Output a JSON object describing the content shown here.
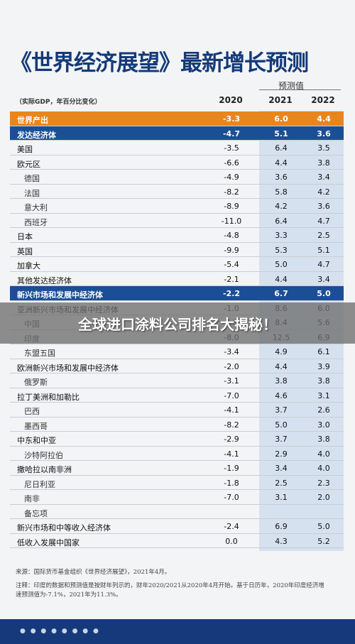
{
  "title": "《世界经济展望》最新增长预测",
  "predicted_label": "预测值",
  "subtitle": "（实际GDP，年百分比变化）",
  "columns": [
    "2020",
    "2021",
    "2022"
  ],
  "rows": [
    {
      "label": "世界产出",
      "v2020": "-3.3",
      "v2021": "6.0",
      "v2022": "4.4",
      "style": "orange"
    },
    {
      "label": "发达经济体",
      "v2020": "-4.7",
      "v2021": "5.1",
      "v2022": "3.6",
      "style": "blue"
    },
    {
      "label": "美国",
      "v2020": "-3.5",
      "v2021": "6.4",
      "v2022": "3.5",
      "style": "normal"
    },
    {
      "label": "欧元区",
      "v2020": "-6.6",
      "v2021": "4.4",
      "v2022": "3.8",
      "style": "normal"
    },
    {
      "label": "德国",
      "v2020": "-4.9",
      "v2021": "3.6",
      "v2022": "3.4",
      "style": "indent"
    },
    {
      "label": "法国",
      "v2020": "-8.2",
      "v2021": "5.8",
      "v2022": "4.2",
      "style": "indent"
    },
    {
      "label": "意大利",
      "v2020": "-8.9",
      "v2021": "4.2",
      "v2022": "3.6",
      "style": "indent"
    },
    {
      "label": "西班牙",
      "v2020": "-11.0",
      "v2021": "6.4",
      "v2022": "4.7",
      "style": "indent"
    },
    {
      "label": "日本",
      "v2020": "-4.8",
      "v2021": "3.3",
      "v2022": "2.5",
      "style": "normal"
    },
    {
      "label": "英国",
      "v2020": "-9.9",
      "v2021": "5.3",
      "v2022": "5.1",
      "style": "normal"
    },
    {
      "label": "加拿大",
      "v2020": "-5.4",
      "v2021": "5.0",
      "v2022": "4.7",
      "style": "normal"
    },
    {
      "label": "其他发达经济体",
      "v2020": "-2.1",
      "v2021": "4.4",
      "v2022": "3.4",
      "style": "normal"
    },
    {
      "label": "新兴市场和发展中经济体",
      "v2020": "-2.2",
      "v2021": "6.7",
      "v2022": "5.0",
      "style": "blue"
    },
    {
      "label": "亚洲新兴市场和发展中经济体",
      "v2020": "-1.0",
      "v2021": "8.6",
      "v2022": "6.0",
      "style": "normal"
    },
    {
      "label": "中国",
      "v2020": "2.3",
      "v2021": "8.4",
      "v2022": "5.6",
      "style": "indent"
    },
    {
      "label": "印度",
      "v2020": "-8.0",
      "v2021": "12.5",
      "v2022": "6.9",
      "style": "indent"
    },
    {
      "label": "东盟五国",
      "v2020": "-3.4",
      "v2021": "4.9",
      "v2022": "6.1",
      "style": "indent"
    },
    {
      "label": "欧洲新兴市场和发展中经济体",
      "v2020": "-2.0",
      "v2021": "4.4",
      "v2022": "3.9",
      "style": "normal"
    },
    {
      "label": "俄罗斯",
      "v2020": "-3.1",
      "v2021": "3.8",
      "v2022": "3.8",
      "style": "indent"
    },
    {
      "label": "拉丁美洲和加勒比",
      "v2020": "-7.0",
      "v2021": "4.6",
      "v2022": "3.1",
      "style": "normal"
    },
    {
      "label": "巴西",
      "v2020": "-4.1",
      "v2021": "3.7",
      "v2022": "2.6",
      "style": "indent"
    },
    {
      "label": "墨西哥",
      "v2020": "-8.2",
      "v2021": "5.0",
      "v2022": "3.0",
      "style": "indent"
    },
    {
      "label": "中东和中亚",
      "v2020": "-2.9",
      "v2021": "3.7",
      "v2022": "3.8",
      "style": "normal"
    },
    {
      "label": "沙特阿拉伯",
      "v2020": "-4.1",
      "v2021": "2.9",
      "v2022": "4.0",
      "style": "indent"
    },
    {
      "label": "撒哈拉以南非洲",
      "v2020": "-1.9",
      "v2021": "3.4",
      "v2022": "4.0",
      "style": "normal"
    },
    {
      "label": "尼日利亚",
      "v2020": "-1.8",
      "v2021": "2.5",
      "v2022": "2.3",
      "style": "indent"
    },
    {
      "label": "南非",
      "v2020": "-7.0",
      "v2021": "3.1",
      "v2022": "2.0",
      "style": "indent"
    },
    {
      "label": "备忘项",
      "v2020": "",
      "v2021": "",
      "v2022": "",
      "style": "indent"
    },
    {
      "label": "新兴市场和中等收入经济体",
      "v2020": "-2.4",
      "v2021": "6.9",
      "v2022": "5.0",
      "style": "normal"
    },
    {
      "label": "低收入发展中国家",
      "v2020": "0.0",
      "v2021": "4.3",
      "v2022": "5.2",
      "style": "normal"
    }
  ],
  "source_note": "来源：国际货币基金组织《世界经济展望》，2021年4月。",
  "footnote": "注释：印度的数据和预测值是按财年列示的，财年2020/2021从2020年4月开始。基于日历年，2020年印度经济增速预测值为-7.1%，2021年为11.3%。",
  "banner": "全球进口涂料公司排名大揭秘！",
  "colors": {
    "title": "#143a78",
    "orange": "#e8861e",
    "blue": "#1b4f95",
    "shade": "#d6e1ef"
  }
}
